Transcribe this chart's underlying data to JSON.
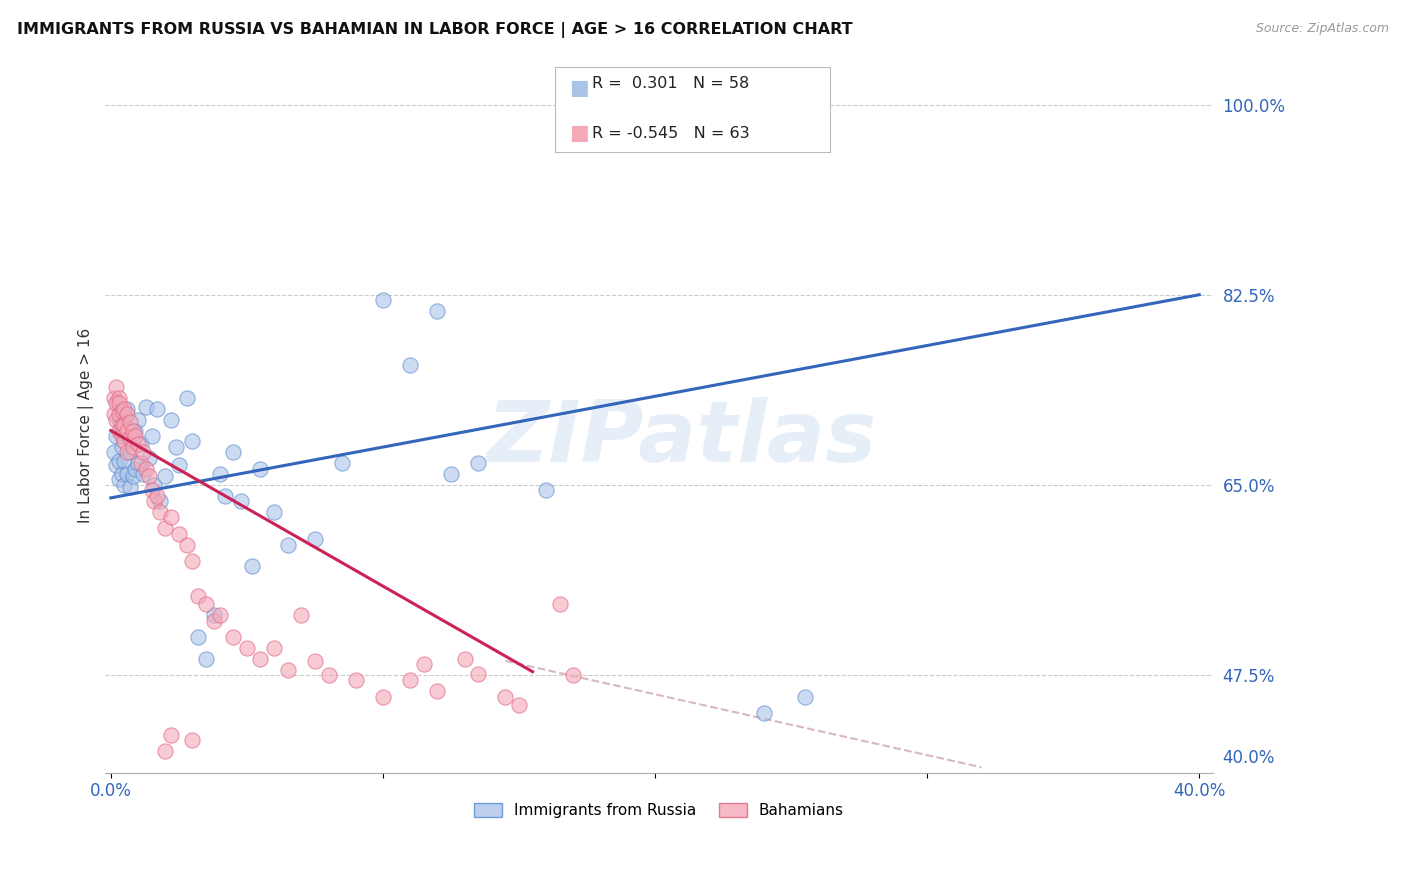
{
  "title": "IMMIGRANTS FROM RUSSIA VS BAHAMIAN IN LABOR FORCE | AGE > 16 CORRELATION CHART",
  "source_text": "Source: ZipAtlas.com",
  "ylabel": "In Labor Force | Age > 16",
  "ylim": [
    0.385,
    1.025
  ],
  "xlim": [
    -0.002,
    0.405
  ],
  "yticks_vals": [
    0.4,
    0.475,
    0.65,
    0.825,
    1.0
  ],
  "yticks_labels": [
    "40.0%",
    "47.5%",
    "65.0%",
    "82.5%",
    "100.0%"
  ],
  "xticks_vals": [
    0.0,
    0.1,
    0.2,
    0.3,
    0.4
  ],
  "xticks_labels": [
    "0.0%",
    "",
    "",
    "",
    "40.0%"
  ],
  "grid_yticks": [
    0.475,
    0.65,
    0.825,
    1.0
  ],
  "legend_blue_label": "Immigrants from Russia",
  "legend_pink_label": "Bahamians",
  "R_blue": "0.301",
  "N_blue": "58",
  "R_pink": "-0.545",
  "N_pink": "63",
  "blue_color": "#aac4e8",
  "pink_color": "#f4a8b8",
  "blue_edge_color": "#5588cc",
  "pink_edge_color": "#e06080",
  "line_blue_color": "#3366bb",
  "line_pink_color": "#cc2255",
  "line_pink_dash_color": "#d8b8c0",
  "watermark_text": "ZIPatlas",
  "blue_scatter": [
    [
      0.001,
      0.68
    ],
    [
      0.002,
      0.695
    ],
    [
      0.002,
      0.668
    ],
    [
      0.003,
      0.71
    ],
    [
      0.003,
      0.672
    ],
    [
      0.003,
      0.655
    ],
    [
      0.004,
      0.7
    ],
    [
      0.004,
      0.66
    ],
    [
      0.004,
      0.685
    ],
    [
      0.005,
      0.715
    ],
    [
      0.005,
      0.672
    ],
    [
      0.005,
      0.65
    ],
    [
      0.006,
      0.695
    ],
    [
      0.006,
      0.66
    ],
    [
      0.006,
      0.72
    ],
    [
      0.007,
      0.68
    ],
    [
      0.007,
      0.648
    ],
    [
      0.008,
      0.692
    ],
    [
      0.008,
      0.658
    ],
    [
      0.009,
      0.7
    ],
    [
      0.009,
      0.665
    ],
    [
      0.01,
      0.71
    ],
    [
      0.01,
      0.67
    ],
    [
      0.011,
      0.688
    ],
    [
      0.012,
      0.66
    ],
    [
      0.013,
      0.722
    ],
    [
      0.014,
      0.675
    ],
    [
      0.015,
      0.695
    ],
    [
      0.016,
      0.65
    ],
    [
      0.017,
      0.72
    ],
    [
      0.018,
      0.635
    ],
    [
      0.02,
      0.658
    ],
    [
      0.022,
      0.71
    ],
    [
      0.024,
      0.685
    ],
    [
      0.025,
      0.668
    ],
    [
      0.028,
      0.73
    ],
    [
      0.03,
      0.69
    ],
    [
      0.032,
      0.51
    ],
    [
      0.035,
      0.49
    ],
    [
      0.038,
      0.53
    ],
    [
      0.04,
      0.66
    ],
    [
      0.042,
      0.64
    ],
    [
      0.045,
      0.68
    ],
    [
      0.048,
      0.635
    ],
    [
      0.052,
      0.575
    ],
    [
      0.055,
      0.665
    ],
    [
      0.06,
      0.625
    ],
    [
      0.065,
      0.595
    ],
    [
      0.075,
      0.6
    ],
    [
      0.085,
      0.67
    ],
    [
      0.1,
      0.82
    ],
    [
      0.11,
      0.76
    ],
    [
      0.12,
      0.81
    ],
    [
      0.125,
      0.66
    ],
    [
      0.135,
      0.67
    ],
    [
      0.16,
      0.645
    ],
    [
      0.24,
      0.44
    ],
    [
      0.255,
      0.455
    ]
  ],
  "pink_scatter": [
    [
      0.001,
      0.73
    ],
    [
      0.001,
      0.715
    ],
    [
      0.002,
      0.74
    ],
    [
      0.002,
      0.725
    ],
    [
      0.002,
      0.71
    ],
    [
      0.003,
      0.73
    ],
    [
      0.003,
      0.715
    ],
    [
      0.003,
      0.7
    ],
    [
      0.003,
      0.725
    ],
    [
      0.004,
      0.718
    ],
    [
      0.004,
      0.705
    ],
    [
      0.004,
      0.695
    ],
    [
      0.005,
      0.72
    ],
    [
      0.005,
      0.705
    ],
    [
      0.005,
      0.69
    ],
    [
      0.006,
      0.715
    ],
    [
      0.006,
      0.7
    ],
    [
      0.006,
      0.68
    ],
    [
      0.007,
      0.708
    ],
    [
      0.007,
      0.693
    ],
    [
      0.008,
      0.7
    ],
    [
      0.008,
      0.685
    ],
    [
      0.009,
      0.695
    ],
    [
      0.01,
      0.688
    ],
    [
      0.011,
      0.67
    ],
    [
      0.012,
      0.68
    ],
    [
      0.013,
      0.665
    ],
    [
      0.014,
      0.658
    ],
    [
      0.015,
      0.645
    ],
    [
      0.016,
      0.635
    ],
    [
      0.017,
      0.64
    ],
    [
      0.018,
      0.625
    ],
    [
      0.02,
      0.61
    ],
    [
      0.022,
      0.62
    ],
    [
      0.025,
      0.605
    ],
    [
      0.028,
      0.595
    ],
    [
      0.03,
      0.58
    ],
    [
      0.032,
      0.548
    ],
    [
      0.035,
      0.54
    ],
    [
      0.038,
      0.525
    ],
    [
      0.04,
      0.53
    ],
    [
      0.045,
      0.51
    ],
    [
      0.05,
      0.5
    ],
    [
      0.055,
      0.49
    ],
    [
      0.06,
      0.5
    ],
    [
      0.065,
      0.48
    ],
    [
      0.07,
      0.53
    ],
    [
      0.075,
      0.488
    ],
    [
      0.08,
      0.475
    ],
    [
      0.09,
      0.47
    ],
    [
      0.1,
      0.455
    ],
    [
      0.11,
      0.47
    ],
    [
      0.115,
      0.485
    ],
    [
      0.12,
      0.46
    ],
    [
      0.13,
      0.49
    ],
    [
      0.135,
      0.476
    ],
    [
      0.145,
      0.455
    ],
    [
      0.15,
      0.447
    ],
    [
      0.165,
      0.54
    ],
    [
      0.17,
      0.475
    ],
    [
      0.02,
      0.405
    ],
    [
      0.022,
      0.42
    ],
    [
      0.03,
      0.415
    ]
  ],
  "blue_line_x": [
    0.0,
    0.4
  ],
  "blue_line_y": [
    0.638,
    0.825
  ],
  "pink_line_x": [
    0.0,
    0.155
  ],
  "pink_line_y": [
    0.7,
    0.478
  ],
  "pink_dash_line_x": [
    0.145,
    0.32
  ],
  "pink_dash_line_y": [
    0.488,
    0.39
  ]
}
